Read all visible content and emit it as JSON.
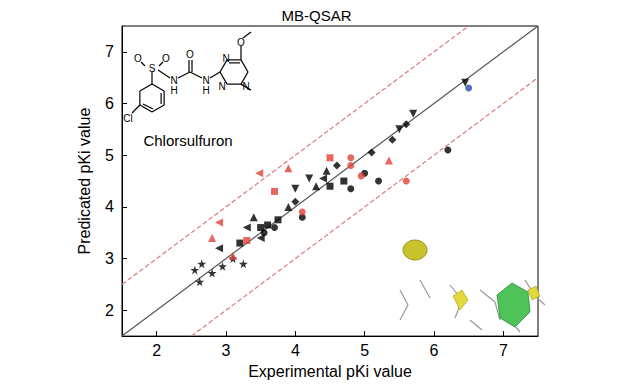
{
  "chart_data": {
    "type": "scatter",
    "title": "MB-QSAR",
    "x_label": "Experimental pKi value",
    "y_label": "Predicated pKi value",
    "annotations": [
      "Chlorsulfuron"
    ],
    "structure_atoms": [
      "S",
      "O",
      "O",
      "N",
      "H",
      "O",
      "N",
      "H",
      "N",
      "N",
      "N",
      "O",
      "Cl"
    ],
    "xlim": [
      1.5,
      7.5
    ],
    "xticks": [
      2,
      3,
      4,
      5,
      6,
      7
    ],
    "ylim": [
      1.5,
      7.5
    ],
    "yticks": [
      2,
      3,
      4,
      5,
      6,
      7
    ],
    "grid": false,
    "series": [
      {
        "type": "line",
        "color": "#555555",
        "line_style": "solid",
        "x": [
          1.5,
          7.5
        ],
        "values": [
          1.5,
          7.5
        ]
      },
      {
        "type": "line",
        "color": "#e07a7a",
        "line_style": "dashed",
        "x": [
          1.5,
          6.5
        ],
        "values": [
          2.5,
          7.5
        ]
      },
      {
        "type": "line",
        "color": "#e07a7a",
        "line_style": "dashed",
        "x": [
          2.5,
          7.5
        ],
        "values": [
          1.5,
          6.5
        ]
      },
      {
        "type": "scatter",
        "color": "#000000",
        "marker": "star",
        "x": [
          2.55,
          2.62,
          2.65,
          2.8,
          2.95,
          3.1,
          3.25
        ],
        "values": [
          2.78,
          2.55,
          2.9,
          2.72,
          2.85,
          3.0,
          2.9
        ]
      },
      {
        "type": "scatter",
        "color": "#000000",
        "marker": "circle",
        "x": [
          3.55,
          3.7,
          4.1,
          4.8,
          5.0,
          5.2,
          6.2
        ],
        "values": [
          3.5,
          3.6,
          3.8,
          4.35,
          4.65,
          4.5,
          5.1
        ]
      },
      {
        "type": "scatter",
        "color": "#000000",
        "marker": "square",
        "x": [
          3.2,
          3.5,
          3.6,
          3.75,
          4.5,
          4.7
        ],
        "values": [
          3.3,
          3.6,
          3.65,
          3.75,
          4.4,
          4.5
        ]
      },
      {
        "type": "scatter",
        "color": "#000000",
        "marker": "triangle",
        "x": [
          3.4,
          3.9,
          4.3,
          4.45
        ],
        "values": [
          3.8,
          4.0,
          4.4,
          4.7
        ]
      },
      {
        "type": "scatter",
        "color": "#000000",
        "marker": "diamond",
        "x": [
          4.0,
          4.6,
          5.1,
          5.4,
          5.6
        ],
        "values": [
          4.1,
          4.8,
          5.05,
          5.3,
          5.6
        ]
      },
      {
        "type": "scatter",
        "color": "#000000",
        "marker": "triangle-down",
        "x": [
          4.0,
          4.2,
          5.5,
          5.7,
          6.45
        ],
        "values": [
          4.35,
          4.55,
          5.5,
          5.8,
          6.4
        ]
      },
      {
        "type": "scatter",
        "color": "#000000",
        "marker": "triangle-left",
        "x": [
          2.9,
          3.3,
          3.5,
          4.4
        ],
        "values": [
          3.2,
          3.6,
          3.4,
          4.55
        ]
      },
      {
        "type": "scatter",
        "color": "#e0403a",
        "marker": "triangle-left",
        "x": [
          2.9,
          3.48
        ],
        "values": [
          3.7,
          4.65
        ]
      },
      {
        "type": "scatter",
        "color": "#e0403a",
        "marker": "triangle",
        "x": [
          2.8,
          3.1,
          3.9,
          5.35
        ],
        "values": [
          3.4,
          3.05,
          4.75,
          4.9
        ]
      },
      {
        "type": "scatter",
        "color": "#e0403a",
        "marker": "circle",
        "x": [
          4.1,
          4.8,
          4.8,
          4.95,
          5.6
        ],
        "values": [
          3.9,
          4.95,
          4.8,
          4.6,
          4.5
        ]
      },
      {
        "type": "scatter",
        "color": "#e0403a",
        "marker": "square",
        "x": [
          3.3,
          3.7,
          4.5
        ],
        "values": [
          3.35,
          4.3,
          4.95
        ]
      },
      {
        "type": "scatter",
        "color": "#2b4da8",
        "marker": "circle",
        "x": [
          6.5
        ],
        "values": [
          6.3
        ]
      }
    ]
  }
}
